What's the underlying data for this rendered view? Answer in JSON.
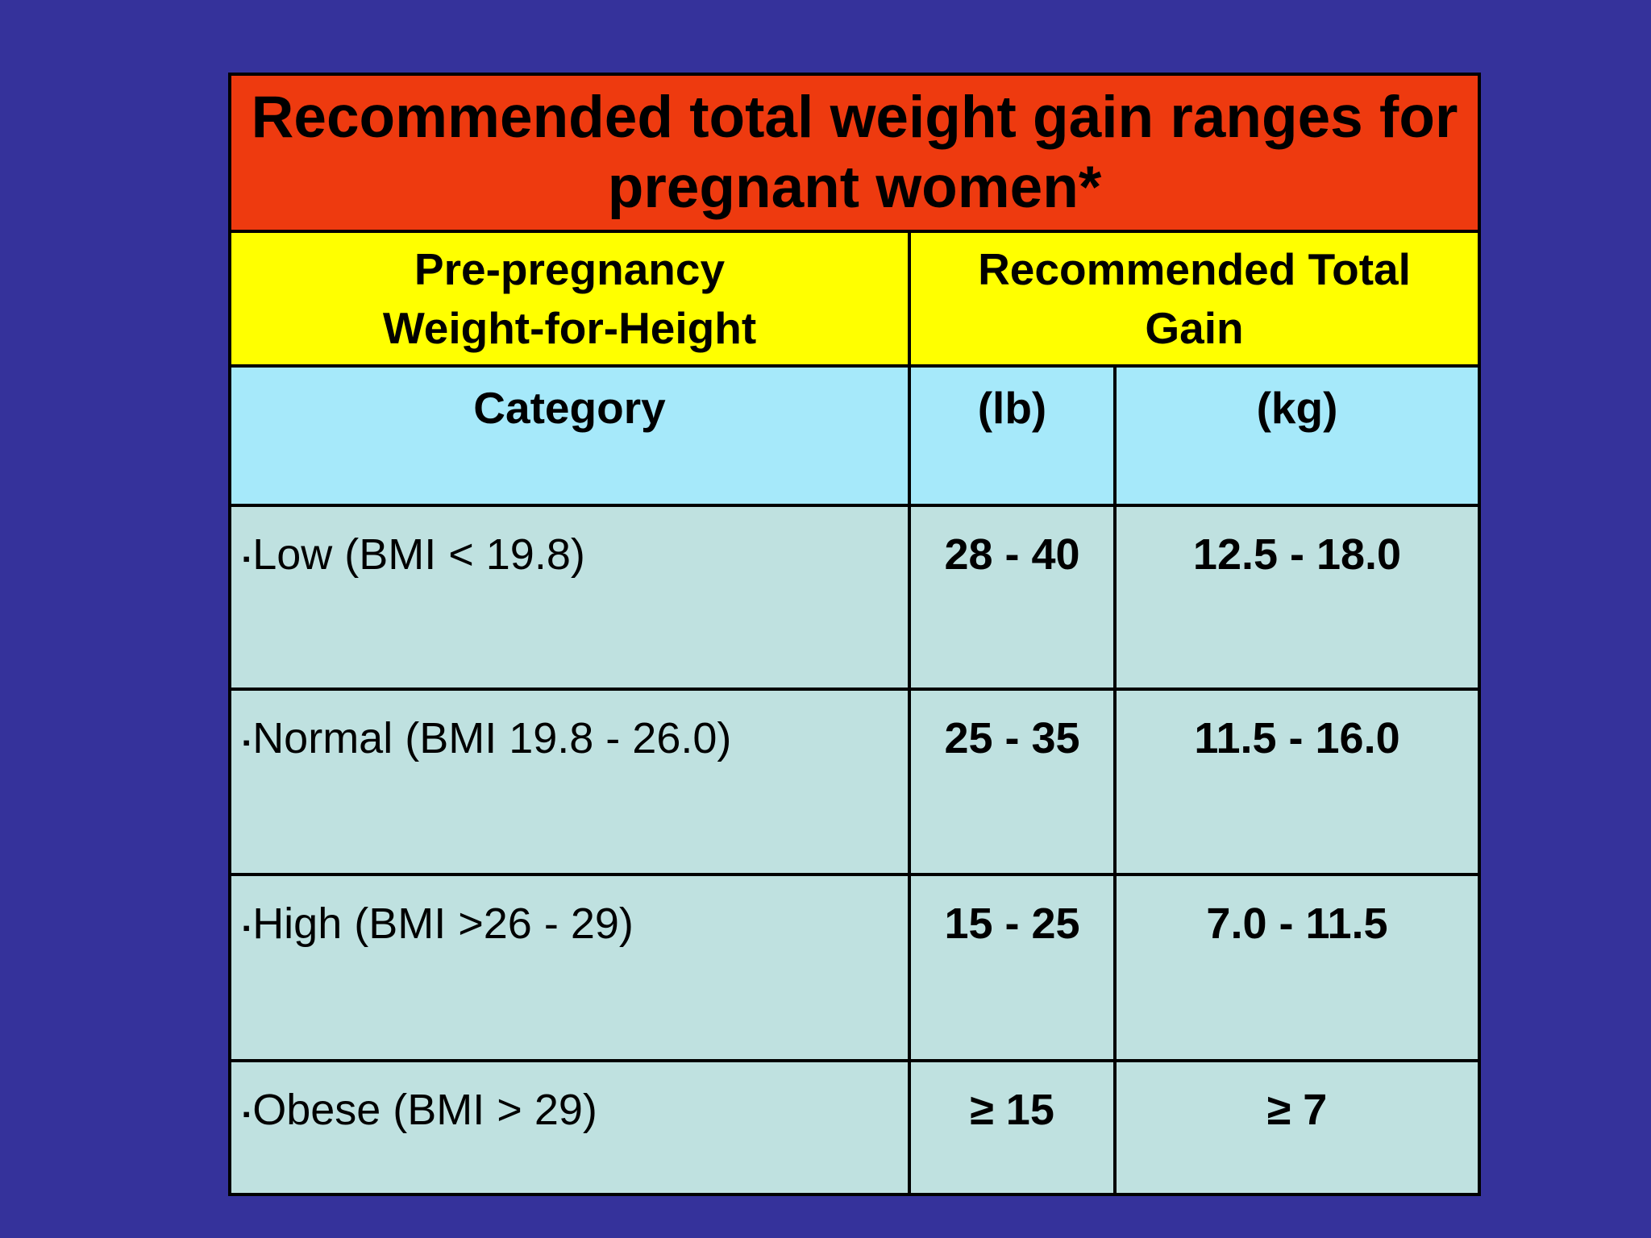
{
  "slide": {
    "background_color": "#35329B",
    "title": "Recommended total weight gain ranges for\npregnant women*",
    "title_bg": "#EE3A0F",
    "header": {
      "col1": "Pre-pregnancy\nWeight-for-Height",
      "col2": "Recommended Total\nGain",
      "bg": "#FFFF00"
    },
    "subheader": {
      "category": "Category",
      "lb": "(lb)",
      "kg": "(kg)",
      "bg": "#A6E9FA"
    },
    "bullet": "▪",
    "row_bg": "#BFE1E0",
    "rows": [
      {
        "category": "Low (BMI < 19.8)",
        "lb": "28 - 40",
        "kg": "12.5 - 18.0"
      },
      {
        "category": "Normal (BMI 19.8 - 26.0)",
        "lb": "25 - 35",
        "kg": "11.5 - 16.0"
      },
      {
        "category": "High (BMI >26 - 29)",
        "lb": "15 - 25",
        "kg": "7.0 - 11.5"
      },
      {
        "category": "Obese (BMI > 29)",
        "lb": "≥ 15",
        "kg": "≥ 7"
      }
    ]
  },
  "chart_data": {
    "type": "table",
    "title": "Recommended total weight gain ranges for pregnant women*",
    "columns": [
      "Pre-pregnancy Weight-for-Height Category",
      "Recommended Total Gain (lb)",
      "Recommended Total Gain (kg)"
    ],
    "rows": [
      [
        "Low (BMI < 19.8)",
        "28 - 40",
        "12.5 - 18.0"
      ],
      [
        "Normal (BMI 19.8 - 26.0)",
        "25 - 35",
        "11.5 - 16.0"
      ],
      [
        "High (BMI >26 - 29)",
        "15 - 25",
        "7.0 - 11.5"
      ],
      [
        "Obese (BMI > 29)",
        "≥ 15",
        "≥ 7"
      ]
    ]
  }
}
